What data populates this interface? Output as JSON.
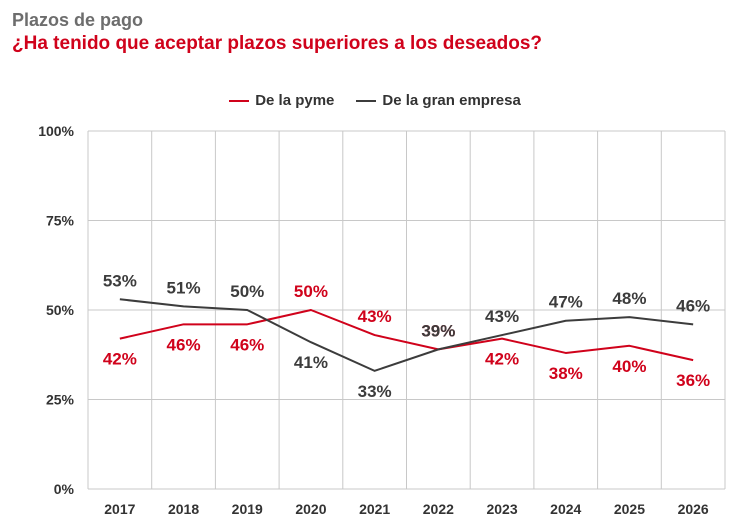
{
  "header": {
    "kicker": "Plazos de pago",
    "title": "¿Ha tenido que aceptar plazos superiores a los deseados?"
  },
  "colors": {
    "pyme": "#d0021b",
    "gran_empresa": "#3c3c3c",
    "grid": "#c8c8c8",
    "axis_text": "#333333"
  },
  "chart_data": {
    "type": "line",
    "x": [
      "2017",
      "2018",
      "2019",
      "2020",
      "2021",
      "2022",
      "2023",
      "2024",
      "2025",
      "2026"
    ],
    "ylim": [
      0,
      100
    ],
    "yticks": [
      0,
      25,
      50,
      75,
      100
    ],
    "ytick_labels": [
      "0%",
      "25%",
      "50%",
      "75%",
      "100%"
    ],
    "grid": true,
    "legend": "top-center",
    "series": [
      {
        "name": "De la pyme",
        "color": "#d0021b",
        "values": [
          42,
          46,
          46,
          50,
          43,
          39,
          42,
          38,
          40,
          36
        ],
        "labels": [
          "42%",
          "46%",
          "46%",
          "50%",
          "43%",
          "39%",
          "42%",
          "38%",
          "40%",
          "36%"
        ]
      },
      {
        "name": "De la gran empresa",
        "color": "#3c3c3c",
        "values": [
          53,
          51,
          50,
          41,
          33,
          39,
          43,
          47,
          48,
          46
        ],
        "labels": [
          "53%",
          "51%",
          "50%",
          "41%",
          "33%",
          "39%",
          "43%",
          "47%",
          "48%",
          "46%"
        ]
      }
    ]
  }
}
